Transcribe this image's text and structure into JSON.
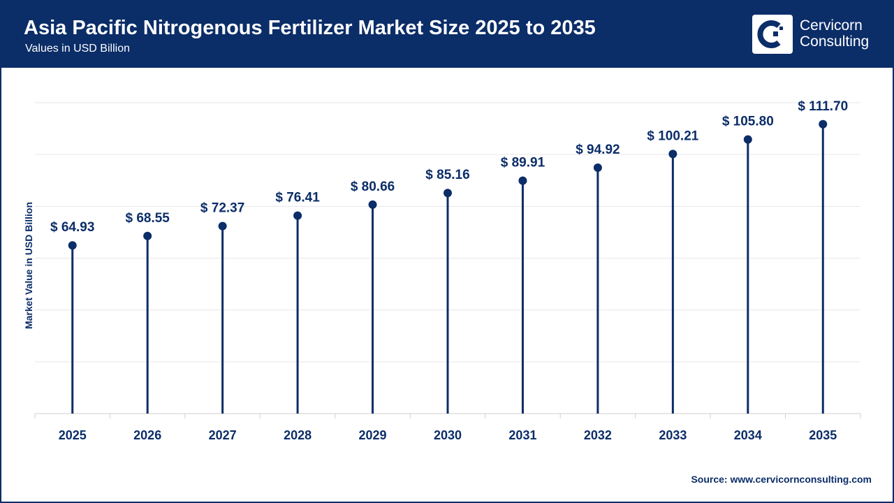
{
  "header": {
    "title": "Asia Pacific Nitrogenous Fertilizer Market Size 2025 to 2035",
    "subtitle": "Values in USD Billion"
  },
  "logo": {
    "text_line1": "Cervicorn",
    "text_line2": "Consulting"
  },
  "source": "Source: www.cervicornconsulting.com",
  "colors": {
    "primary": "#0b2d68",
    "grid": "#e6e6e6"
  },
  "chart_data": {
    "type": "lollipop",
    "title": "Asia Pacific Nitrogenous Fertilizer Market Size 2025 to 2035",
    "ylabel": "Market Value in USD Billion",
    "xlabel": "",
    "categories": [
      "2025",
      "2026",
      "2027",
      "2028",
      "2029",
      "2030",
      "2031",
      "2032",
      "2033",
      "2034",
      "2035"
    ],
    "values": [
      64.93,
      68.55,
      72.37,
      76.41,
      80.66,
      85.16,
      89.91,
      94.92,
      100.21,
      105.8,
      111.7
    ],
    "data_labels": [
      "$ 64.93",
      "$ 68.55",
      "$ 72.37",
      "$ 76.41",
      "$ 80.66",
      "$ 85.16",
      "$ 89.91",
      "$ 94.92",
      "$ 100.21",
      "$ 105.80",
      "$ 111.70"
    ],
    "ylim": [
      0,
      120
    ],
    "grid": true,
    "y_tick_labels_shown": false
  }
}
